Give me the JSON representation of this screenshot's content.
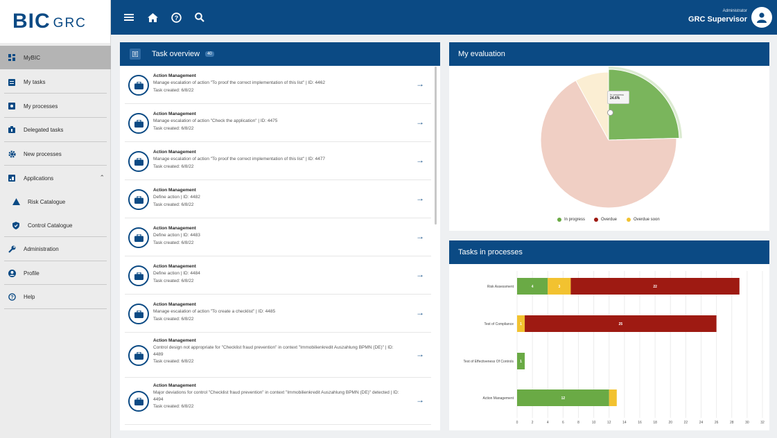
{
  "logo": {
    "bic": "BIC",
    "grc": "GRC"
  },
  "sidebar": {
    "items": [
      {
        "label": "MyBIC",
        "icon": "dashboard-icon"
      },
      {
        "label": "My tasks",
        "icon": "clipboard-icon"
      },
      {
        "label": "My processes",
        "icon": "process-icon"
      },
      {
        "label": "Delegated tasks",
        "icon": "delegate-icon"
      },
      {
        "label": "New processes",
        "icon": "gear-icon"
      },
      {
        "label": "Applications",
        "icon": "applications-icon"
      },
      {
        "label": "Risk Catalogue",
        "icon": "warning-icon"
      },
      {
        "label": "Control Catalogue",
        "icon": "shield-icon"
      },
      {
        "label": "Administration",
        "icon": "wrench-icon"
      },
      {
        "label": "Profile",
        "icon": "profile-icon"
      },
      {
        "label": "Help",
        "icon": "help-icon"
      }
    ]
  },
  "topbar": {
    "role": "Administrator",
    "user": "GRC Supervisor"
  },
  "task_overview": {
    "title": "Task overview",
    "count": "40",
    "tasks": [
      {
        "title": "Action Management",
        "desc": "Manage escalation of action \"To proof the correct implementation of this list\" | ID: 4462",
        "created": "Task created: 6/8/22"
      },
      {
        "title": "Action Management",
        "desc": "Manage escalation of action \"Check the application\" | ID: 4475",
        "created": "Task created: 6/8/22"
      },
      {
        "title": "Action Management",
        "desc": "Manage escalation of action \"To proof the correct implementation of this list\" | ID: 4477",
        "created": "Task created: 6/8/22"
      },
      {
        "title": "Action Management",
        "desc": "Define action | ID: 4482",
        "created": "Task created: 6/8/22"
      },
      {
        "title": "Action Management",
        "desc": "Define action | ID: 4483",
        "created": "Task created: 6/8/22"
      },
      {
        "title": "Action Management",
        "desc": "Define action | ID: 4484",
        "created": "Task created: 6/8/22"
      },
      {
        "title": "Action Management",
        "desc": "Manage escalation of action \"To create a checklist\" | ID: 4485",
        "created": "Task created: 6/8/22"
      },
      {
        "title": "Action Management",
        "desc": "Control design not appropriate for \"Checklist fraud prevention\" in context \"Immobilienkredit Auszahlung BPMN (DE)\" | ID: 4489",
        "created": "Task created: 6/8/22"
      },
      {
        "title": "Action Management",
        "desc": "Major deviations for control \"Checklist fraud prevention\" in context \"Immobilienkredit Auszahlung BPMN (DE)\" detected | ID: 4494",
        "created": "Task created: 6/8/22"
      }
    ]
  },
  "evaluation": {
    "title": "My evaluation",
    "tooltip": {
      "label": "In progress",
      "value": "24.6%"
    },
    "legend": [
      {
        "label": "In progress",
        "color": "#6aaa45"
      },
      {
        "label": "Overdue",
        "color": "#9e1a12"
      },
      {
        "label": "Overdue soon",
        "color": "#f2c230"
      }
    ]
  },
  "tasks_in_processes": {
    "title": "Tasks in processes"
  },
  "chart_data": [
    {
      "type": "pie",
      "title": "My evaluation",
      "slices": [
        {
          "label": "In progress",
          "value": 24.6,
          "color": "#7ab55c"
        },
        {
          "label": "Overdue",
          "value": 67.4,
          "color": "#f0cfc4"
        },
        {
          "label": "Overdue soon",
          "value": 8.0,
          "color": "#fbeed3"
        }
      ]
    },
    {
      "type": "bar",
      "orientation": "horizontal",
      "stacked": true,
      "title": "Tasks in processes",
      "categories": [
        "Risk Assessment",
        "Test of Compliance",
        "Test of Effectiveness Of Controls",
        "Action Management"
      ],
      "series": [
        {
          "name": "In progress",
          "color": "#6aaa45",
          "values": [
            4,
            0,
            1,
            12
          ]
        },
        {
          "name": "Overdue soon",
          "color": "#f2c230",
          "values": [
            3,
            1,
            0,
            1
          ]
        },
        {
          "name": "Overdue",
          "color": "#9e1a12",
          "values": [
            22,
            25,
            0,
            0
          ]
        }
      ],
      "bar_labels": [
        [
          "4",
          "3",
          "22"
        ],
        [
          "1",
          "25"
        ],
        [
          "1"
        ],
        [
          "12",
          ""
        ]
      ],
      "xlim": [
        0,
        32
      ],
      "xticks": [
        0,
        2,
        4,
        6,
        8,
        10,
        12,
        14,
        16,
        18,
        20,
        22,
        24,
        26,
        28,
        30,
        32
      ],
      "grid": true
    }
  ]
}
